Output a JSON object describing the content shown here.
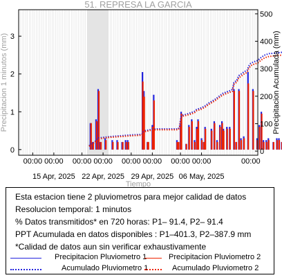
{
  "chart_data": {
    "type": "bar",
    "title": "51. REPRESA LA GARCIA",
    "xlabel": "Tiempo",
    "ylabel_left": "Precipitacion 1 minutos (mm)",
    "ylabel_right": "Precipitacion Acumulada (mm)",
    "x_range_days": [
      "2025-04-10",
      "2025-05-14"
    ],
    "ylim_left": [
      -0.15,
      3.7
    ],
    "ylim_right": [
      -15,
      515
    ],
    "yticks_left": [
      0,
      1,
      2,
      3
    ],
    "yticks_right": [
      0,
      100,
      200,
      300,
      400,
      500
    ],
    "x_top_ticks": [
      "00:00",
      "00:00",
      "00:00",
      "00:00",
      "00:00",
      "00:00",
      "00:00",
      "00:00"
    ],
    "x_top_tick_dates": [
      "2025-04-12",
      "2025-04-15",
      "2025-04-19",
      "2025-04-22",
      "2025-04-26",
      "2025-04-29",
      "2025-05-03",
      "2025-05-06"
    ],
    "x_date_labels": [
      "15 Apr, 2025",
      "22 Apr, 2025",
      "29 Apr, 2025",
      "06 May, 2025"
    ],
    "x_date_label_dates": [
      "2025-04-15",
      "2025-04-22",
      "2025-04-29",
      "2025-05-06"
    ],
    "x_last_tick": {
      "label": "00:00",
      "date": "2025-05-13"
    },
    "data_gap": [
      "2025-04-19T18:00",
      "2025-04-22T18:00"
    ],
    "series": [
      {
        "name": "Precipitacion Pluviometro 1",
        "color": "#2222dd",
        "bars": [
          [
            10.2,
            0.7
          ],
          [
            10.5,
            0.2
          ],
          [
            11.0,
            0.8
          ],
          [
            11.3,
            1.6
          ],
          [
            11.6,
            0.2
          ],
          [
            12.3,
            0.3
          ],
          [
            13.3,
            0.25
          ],
          [
            14.0,
            0.25
          ],
          [
            14.7,
            0.2
          ],
          [
            15.2,
            0.25
          ],
          [
            15.5,
            0.25
          ],
          [
            17.6,
            2.05
          ],
          [
            17.8,
            1.55
          ],
          [
            18.3,
            0.2
          ],
          [
            18.4,
            0.2
          ],
          [
            19.0,
            0.65
          ],
          [
            19.2,
            1.45
          ],
          [
            22.5,
            0.25
          ],
          [
            22.7,
            0.2
          ],
          [
            23.0,
            0.65
          ],
          [
            23.1,
            1.0
          ],
          [
            23.8,
            0.15
          ],
          [
            24.2,
            0.65
          ],
          [
            24.6,
            0.8
          ],
          [
            25.0,
            0.25
          ],
          [
            25.3,
            0.6
          ],
          [
            25.5,
            0.8
          ],
          [
            26.0,
            0.3
          ],
          [
            26.3,
            0.2
          ],
          [
            26.5,
            0.6
          ],
          [
            27.4,
            0.55
          ],
          [
            27.8,
            0.75
          ],
          [
            28.2,
            0.25
          ],
          [
            28.6,
            0.65
          ],
          [
            28.9,
            0.75
          ],
          [
            29.1,
            0.55
          ],
          [
            29.6,
            0.6
          ],
          [
            30.0,
            0.6
          ],
          [
            30.6,
            1.6
          ],
          [
            30.9,
            0.2
          ],
          [
            31.3,
            1.6
          ],
          [
            31.6,
            0.3
          ],
          [
            32.0,
            0.35
          ],
          [
            32.6,
            2.05
          ],
          [
            33.3,
            1.6
          ],
          [
            33.9,
            0.3
          ],
          [
            34.2,
            0.65
          ],
          [
            34.5,
            1.0
          ],
          [
            34.8,
            0.25
          ],
          [
            35.2,
            0.25
          ],
          [
            35.5,
            0.3
          ],
          [
            36.2,
            0.2
          ],
          [
            36.7,
            0.3
          ],
          [
            37.0,
            0.3
          ],
          [
            37.4,
            0.2
          ],
          [
            37.8,
            1.7
          ],
          [
            38.2,
            0.6
          ],
          [
            38.6,
            1.55
          ],
          [
            39.0,
            0.65
          ],
          [
            39.4,
            0.25
          ],
          [
            39.9,
            0.2
          ],
          [
            40.3,
            0.6
          ],
          [
            40.7,
            0.3
          ]
        ]
      },
      {
        "name": "Precipitacion Pluviometro 2",
        "color": "#ee2200",
        "bars": [
          [
            10.3,
            0.7
          ],
          [
            10.6,
            0.2
          ],
          [
            11.1,
            0.75
          ],
          [
            11.4,
            1.55
          ],
          [
            11.7,
            0.2
          ],
          [
            12.4,
            0.25
          ],
          [
            13.4,
            0.2
          ],
          [
            14.1,
            0.2
          ],
          [
            14.8,
            0.2
          ],
          [
            15.3,
            0.2
          ],
          [
            15.6,
            0.2
          ],
          [
            17.65,
            1.8
          ],
          [
            17.85,
            1.4
          ],
          [
            18.35,
            0.2
          ],
          [
            18.45,
            0.2
          ],
          [
            19.05,
            0.6
          ],
          [
            19.25,
            1.3
          ],
          [
            22.55,
            0.2
          ],
          [
            22.75,
            0.2
          ],
          [
            23.05,
            0.6
          ],
          [
            23.15,
            0.95
          ],
          [
            23.85,
            0.15
          ],
          [
            24.25,
            0.6
          ],
          [
            24.65,
            0.75
          ],
          [
            25.05,
            0.2
          ],
          [
            25.35,
            0.55
          ],
          [
            25.55,
            0.75
          ],
          [
            26.05,
            0.25
          ],
          [
            26.35,
            0.2
          ],
          [
            26.55,
            0.55
          ],
          [
            27.45,
            0.5
          ],
          [
            27.85,
            0.7
          ],
          [
            28.25,
            0.2
          ],
          [
            28.65,
            0.6
          ],
          [
            28.95,
            0.7
          ],
          [
            29.15,
            0.5
          ],
          [
            29.65,
            0.55
          ],
          [
            30.05,
            0.55
          ],
          [
            30.65,
            1.55
          ],
          [
            30.95,
            0.2
          ],
          [
            31.35,
            1.55
          ],
          [
            31.65,
            0.25
          ],
          [
            32.05,
            0.3
          ],
          [
            32.65,
            1.75
          ],
          [
            33.35,
            1.55
          ],
          [
            33.95,
            0.25
          ],
          [
            34.25,
            0.6
          ],
          [
            34.55,
            0.95
          ],
          [
            34.85,
            0.2
          ],
          [
            35.25,
            0.2
          ],
          [
            35.55,
            0.25
          ],
          [
            36.25,
            0.2
          ],
          [
            36.75,
            0.25
          ],
          [
            37.05,
            0.25
          ],
          [
            37.45,
            0.2
          ],
          [
            37.85,
            1.6
          ],
          [
            38.25,
            0.55
          ],
          [
            38.65,
            1.5
          ],
          [
            39.05,
            0.6
          ],
          [
            39.45,
            0.2
          ],
          [
            39.95,
            0.2
          ],
          [
            40.35,
            0.55
          ],
          [
            40.75,
            0.25
          ]
        ]
      },
      {
        "name": "Acumulado Pluviometro 1",
        "color": "#2222dd",
        "style": "dotted",
        "points": [
          [
            10.0,
            20
          ],
          [
            10.2,
            22
          ],
          [
            10.5,
            28
          ],
          [
            11.0,
            38
          ],
          [
            11.3,
            47
          ],
          [
            12.0,
            50
          ],
          [
            13.0,
            53
          ],
          [
            14.0,
            55
          ],
          [
            15.0,
            57
          ],
          [
            16.0,
            59
          ],
          [
            17.5,
            61
          ],
          [
            17.7,
            68
          ],
          [
            17.9,
            74
          ],
          [
            18.5,
            77
          ],
          [
            19.0,
            80
          ],
          [
            19.7,
            81
          ],
          [
            22.7,
            81
          ],
          [
            22.9,
            92
          ],
          [
            23.0,
            115
          ],
          [
            23.2,
            130
          ],
          [
            23.8,
            134
          ],
          [
            24.5,
            140
          ],
          [
            25.0,
            145
          ],
          [
            25.3,
            152
          ],
          [
            26.0,
            158
          ],
          [
            26.5,
            165
          ],
          [
            27.0,
            175
          ],
          [
            27.5,
            182
          ],
          [
            28.0,
            190
          ],
          [
            28.5,
            200
          ],
          [
            29.0,
            210
          ],
          [
            29.3,
            213
          ],
          [
            30.0,
            220
          ],
          [
            30.4,
            225
          ],
          [
            30.6,
            250
          ],
          [
            31.0,
            258
          ],
          [
            31.3,
            275
          ],
          [
            31.6,
            280
          ],
          [
            32.0,
            288
          ],
          [
            32.5,
            295
          ],
          [
            32.7,
            310
          ],
          [
            33.0,
            320
          ],
          [
            33.4,
            325
          ],
          [
            34.0,
            330
          ],
          [
            34.5,
            342
          ],
          [
            35.0,
            350
          ],
          [
            35.6,
            355
          ],
          [
            36.5,
            357
          ],
          [
            37.5,
            360
          ],
          [
            37.8,
            372
          ],
          [
            38.3,
            382
          ],
          [
            38.7,
            392
          ],
          [
            39.0,
            398
          ],
          [
            39.5,
            400
          ],
          [
            40.0,
            400
          ],
          [
            40.5,
            401.3
          ],
          [
            41.0,
            401.3
          ]
        ]
      },
      {
        "name": "Acumulado Pluviometro 2",
        "color": "#ee2200",
        "style": "dotted",
        "points": [
          [
            10.0,
            18
          ],
          [
            10.2,
            20
          ],
          [
            10.5,
            26
          ],
          [
            11.0,
            35
          ],
          [
            11.3,
            44
          ],
          [
            12.0,
            47
          ],
          [
            13.0,
            50
          ],
          [
            14.0,
            52
          ],
          [
            15.0,
            54
          ],
          [
            16.0,
            56
          ],
          [
            17.5,
            58
          ],
          [
            17.7,
            65
          ],
          [
            17.9,
            71
          ],
          [
            18.5,
            74
          ],
          [
            19.0,
            77
          ],
          [
            19.7,
            78
          ],
          [
            22.7,
            78
          ],
          [
            22.9,
            88
          ],
          [
            23.0,
            111
          ],
          [
            23.2,
            126
          ],
          [
            23.8,
            130
          ],
          [
            24.5,
            135
          ],
          [
            25.0,
            140
          ],
          [
            25.3,
            147
          ],
          [
            26.0,
            153
          ],
          [
            26.5,
            160
          ],
          [
            27.0,
            170
          ],
          [
            27.5,
            177
          ],
          [
            28.0,
            185
          ],
          [
            28.5,
            195
          ],
          [
            29.0,
            204
          ],
          [
            29.3,
            207
          ],
          [
            30.0,
            214
          ],
          [
            30.4,
            218
          ],
          [
            30.6,
            243
          ],
          [
            31.0,
            251
          ],
          [
            31.3,
            267
          ],
          [
            31.6,
            272
          ],
          [
            32.0,
            280
          ],
          [
            32.5,
            287
          ],
          [
            32.7,
            301
          ],
          [
            33.0,
            311
          ],
          [
            33.4,
            316
          ],
          [
            34.0,
            321
          ],
          [
            34.5,
            332
          ],
          [
            35.0,
            340
          ],
          [
            35.6,
            345
          ],
          [
            36.5,
            347
          ],
          [
            37.5,
            350
          ],
          [
            37.8,
            362
          ],
          [
            38.3,
            372
          ],
          [
            38.7,
            381
          ],
          [
            39.0,
            386
          ],
          [
            39.5,
            387.9
          ],
          [
            40.0,
            387.9
          ],
          [
            40.5,
            387.9
          ],
          [
            41.0,
            387.9
          ]
        ]
      }
    ],
    "end_marker": {
      "x": 40.9,
      "y_right": 0
    }
  },
  "info": {
    "lines": [
      "Esta estacion tiene 2 pluviometros para mejor calidad de datos",
      "Resolucion temporal: 1 minutos",
      "% Datos transmitidos* en 720 horas: P1– 91.4, P2– 91.4",
      "PPT Acumulada en datos disponibles : P1–401.3, P2–387.9 mm",
      "*Calidad de datos aun sin verificar exhaustivamente"
    ],
    "legend": [
      {
        "label": "Precipitacion Pluviometro 1",
        "color": "#2222dd",
        "style": "solid"
      },
      {
        "label": "Precipitacion Pluviometro 2",
        "color": "#ee2200",
        "style": "solid"
      },
      {
        "label": "Acumulado Pluviometro 1",
        "color": "#2222dd",
        "style": "dotted"
      },
      {
        "label": "Acumulado Pluviometro 2",
        "color": "#ee2200",
        "style": "dotted"
      }
    ]
  }
}
